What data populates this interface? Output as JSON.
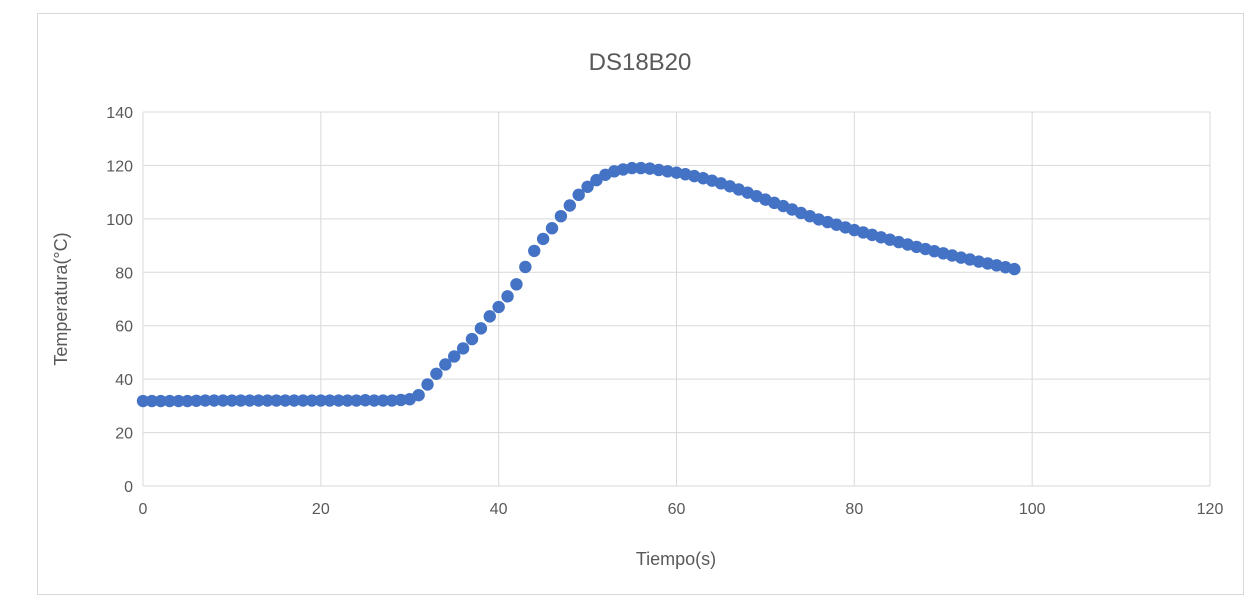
{
  "chart_data": {
    "type": "scatter",
    "title": "DS18B20",
    "xlabel": "Tiempo(s)",
    "ylabel": "Temperatura(°C)",
    "xlim": [
      0,
      120
    ],
    "ylim": [
      0,
      140
    ],
    "xticks": [
      0,
      20,
      40,
      60,
      80,
      100,
      120
    ],
    "yticks": [
      0,
      20,
      40,
      60,
      80,
      100,
      120,
      140
    ],
    "grid": true,
    "legend": "none",
    "marker_color": "#4472C4",
    "series": [
      {
        "x": [
          0,
          1,
          2,
          3,
          4,
          5,
          6,
          7,
          8,
          9,
          10,
          11,
          12,
          13,
          14,
          15,
          16,
          17,
          18,
          19,
          20,
          21,
          22,
          23,
          24,
          25,
          26,
          27,
          28,
          29,
          30,
          31,
          32,
          33,
          34,
          35,
          36,
          37,
          38,
          39,
          40,
          41,
          42,
          43,
          44,
          45,
          46,
          47,
          48,
          49,
          50,
          51,
          52,
          53,
          54,
          55,
          56,
          57,
          58,
          59,
          60,
          61,
          62,
          63,
          64,
          65,
          66,
          67,
          68,
          69,
          70,
          71,
          72,
          73,
          74,
          75,
          76,
          77,
          78,
          79,
          80,
          81,
          82,
          83,
          84,
          85,
          86,
          87,
          88,
          89,
          90,
          91,
          92,
          93,
          94,
          95,
          96,
          97,
          98
        ],
        "y": [
          31.8,
          31.8,
          31.8,
          31.8,
          31.8,
          31.8,
          31.9,
          32,
          32,
          32,
          32,
          32,
          32,
          32,
          32,
          32,
          32,
          32,
          32,
          32,
          32,
          32,
          32,
          32,
          32,
          32.1,
          32,
          32,
          32,
          32.2,
          32.5,
          34,
          38,
          42,
          45.5,
          48.5,
          51.5,
          55,
          59,
          63.5,
          67,
          71,
          75.5,
          82,
          88,
          92.5,
          96.5,
          101,
          105,
          109,
          112,
          114.5,
          116.5,
          117.8,
          118.5,
          119,
          119,
          118.8,
          118.3,
          117.8,
          117.3,
          116.7,
          116,
          115.2,
          114.3,
          113.3,
          112.2,
          111,
          109.8,
          108.5,
          107.2,
          106,
          104.8,
          103.5,
          102.2,
          101,
          99.8,
          98.8,
          97.8,
          96.8,
          95.8,
          94.9,
          94,
          93.1,
          92.2,
          91.3,
          90.4,
          89.5,
          88.7,
          87.9,
          87.1,
          86.3,
          85.5,
          84.8,
          84,
          83.3,
          82.6,
          81.9,
          81.2
        ]
      }
    ]
  }
}
